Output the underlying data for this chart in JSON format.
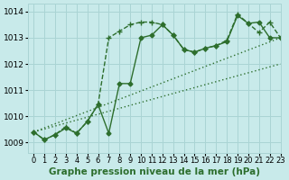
{
  "title": "Graphe pression niveau de la mer (hPa)",
  "bg_color": "#c8eaea",
  "grid_color": "#aad4d4",
  "line_color": "#2d6e2d",
  "xlim": [
    -0.5,
    23
  ],
  "ylim": [
    1008.6,
    1014.3
  ],
  "yticks": [
    1009,
    1010,
    1011,
    1012,
    1013,
    1014
  ],
  "xticks": [
    0,
    1,
    2,
    3,
    4,
    5,
    6,
    7,
    8,
    9,
    10,
    11,
    12,
    13,
    14,
    15,
    16,
    17,
    18,
    19,
    20,
    21,
    22,
    23
  ],
  "series": [
    {
      "label": "dotted_diagonal",
      "x": [
        0,
        23
      ],
      "y": [
        1009.4,
        1013.0
      ],
      "style": "dotted",
      "marker": null,
      "lw": 1.0
    },
    {
      "label": "dotted_diagonal2",
      "x": [
        0,
        23
      ],
      "y": [
        1009.4,
        1012.0
      ],
      "style": "dotted",
      "marker": null,
      "lw": 1.0
    },
    {
      "label": "solid_diamonds",
      "x": [
        0,
        1,
        2,
        3,
        4,
        5,
        6,
        7,
        8,
        9,
        10,
        11,
        12,
        13,
        14,
        15,
        16,
        17,
        18,
        19,
        20,
        21,
        22,
        23
      ],
      "y": [
        1009.4,
        1009.1,
        1009.3,
        1009.55,
        1009.35,
        1009.8,
        1010.45,
        1009.35,
        1011.25,
        1011.25,
        1013.0,
        1013.1,
        1013.5,
        1013.1,
        1012.55,
        1012.45,
        1012.6,
        1012.7,
        1012.85,
        1013.85,
        1013.55,
        1013.6,
        1013.0,
        1013.0
      ],
      "style": "solid",
      "marker": "D",
      "lw": 1.0,
      "ms": 2.5
    },
    {
      "label": "dashed_plus",
      "x": [
        0,
        1,
        2,
        3,
        4,
        5,
        6,
        7,
        8,
        9,
        10,
        11,
        12,
        13,
        14,
        15,
        16,
        17,
        18,
        19,
        20,
        21,
        22,
        23
      ],
      "y": [
        1009.4,
        1009.1,
        1009.3,
        1009.6,
        1009.35,
        1009.8,
        1010.45,
        1013.0,
        1013.25,
        1013.5,
        1013.6,
        1013.6,
        1013.5,
        1013.1,
        1012.55,
        1012.45,
        1012.6,
        1012.7,
        1012.9,
        1013.9,
        1013.55,
        1013.2,
        1013.6,
        1013.0
      ],
      "style": "dashed",
      "marker": "+",
      "lw": 1.0,
      "ms": 4.5
    }
  ],
  "xlabel_fontsize": 7.5,
  "tick_fontsize": 6.5,
  "tick_fontsize_x": 6.0
}
